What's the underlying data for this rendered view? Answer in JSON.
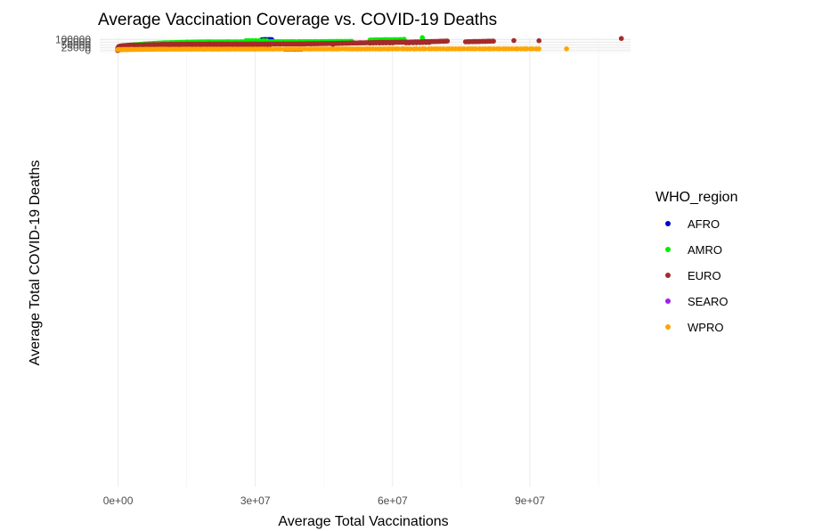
{
  "chart_data": {
    "type": "scatter",
    "title": "Average Vaccination Coverage vs. COVID-19 Deaths",
    "xlabel": "Average Total Vaccinations",
    "ylabel": "Average Total COVID-19 Deaths",
    "xlim": [
      -4000000,
      112000000
    ],
    "ylim": [
      -4000000,
      120000
    ],
    "xticks": [
      0,
      30000000,
      60000000,
      90000000
    ],
    "xtick_labels": [
      "0e+00",
      "3e+07",
      "6e+07",
      "9e+07"
    ],
    "yticks": [
      0,
      25000,
      50000,
      75000,
      100000
    ],
    "ytick_labels": [
      "0",
      "25000",
      "50000",
      "75000",
      "100000"
    ],
    "grid": true,
    "legend": {
      "title": "WHO_region",
      "position": "right"
    },
    "series": [
      {
        "name": "AFRO",
        "color": "#0000cd",
        "segments": [
          {
            "x0": 31500000,
            "x1": 33500000,
            "y0": 99500,
            "y1": 100100,
            "n": 14
          }
        ]
      },
      {
        "name": "AMRO",
        "color": "#00ee00",
        "segments": [
          {
            "x0": 0,
            "x1": 100000,
            "y0": 16000,
            "y1": 16500,
            "n": 2
          },
          {
            "x0": 200000,
            "x1": 1300000,
            "y0": 38000,
            "y1": 45000,
            "n": 12
          },
          {
            "x0": 1300000,
            "x1": 5500000,
            "y0": 45000,
            "y1": 58000,
            "n": 20
          },
          {
            "x0": 5500000,
            "x1": 10000000,
            "y0": 58500,
            "y1": 70000,
            "n": 24
          },
          {
            "x0": 10000000,
            "x1": 15000000,
            "y0": 70000,
            "y1": 75500,
            "n": 22
          },
          {
            "x0": 15000000,
            "x1": 20000000,
            "y0": 75500,
            "y1": 79000,
            "n": 22
          },
          {
            "x0": 20000000,
            "x1": 30000000,
            "y0": 79000,
            "y1": 79800,
            "n": 34
          },
          {
            "x0": 30000000,
            "x1": 45000000,
            "y0": 79800,
            "y1": 81200,
            "n": 44
          },
          {
            "x0": 45000000,
            "x1": 51000000,
            "y0": 81200,
            "y1": 84000,
            "n": 22
          },
          {
            "x0": 28000000,
            "x1": 30000000,
            "y0": 91000,
            "y1": 91300,
            "n": 4
          },
          {
            "x0": 31000000,
            "x1": 32500000,
            "y0": 91500,
            "y1": 91700,
            "n": 3
          },
          {
            "x0": 55000000,
            "x1": 62000000,
            "y0": 96500,
            "y1": 100500,
            "n": 26
          },
          {
            "x0": 62500000,
            "x1": 62500000,
            "y0": 103000,
            "y1": 103000,
            "n": 1
          },
          {
            "x0": 66500000,
            "x1": 66500000,
            "y0": 118000,
            "y1": 118000,
            "n": 1
          },
          {
            "x0": 66800000,
            "x1": 66800000,
            "y0": 88000,
            "y1": 88000,
            "n": 1
          },
          {
            "x0": 800000,
            "x1": 800000,
            "y0": 36000,
            "y1": 36000,
            "n": 1
          }
        ]
      },
      {
        "name": "EURO",
        "color": "#a52a2a",
        "segments": [
          {
            "x0": 0,
            "x1": 200000,
            "y0": 0,
            "y1": 6000,
            "n": 6
          },
          {
            "x0": 0,
            "x1": 700000,
            "y0": 32000,
            "y1": 41000,
            "n": 10
          },
          {
            "x0": 700000,
            "x1": 3000000,
            "y0": 41000,
            "y1": 49000,
            "n": 18
          },
          {
            "x0": 3000000,
            "x1": 10000000,
            "y0": 49000,
            "y1": 56000,
            "n": 26
          },
          {
            "x0": 10000000,
            "x1": 20000000,
            "y0": 56000,
            "y1": 59000,
            "n": 32
          },
          {
            "x0": 20000000,
            "x1": 40000000,
            "y0": 59000,
            "y1": 60500,
            "n": 50
          },
          {
            "x0": 40000000,
            "x1": 48000000,
            "y0": 60500,
            "y1": 65000,
            "n": 26
          },
          {
            "x0": 48000000,
            "x1": 56000000,
            "y0": 65000,
            "y1": 73000,
            "n": 30
          },
          {
            "x0": 56000000,
            "x1": 65000000,
            "y0": 73000,
            "y1": 78000,
            "n": 34
          },
          {
            "x0": 65000000,
            "x1": 72000000,
            "y0": 78000,
            "y1": 86000,
            "n": 30
          },
          {
            "x0": 55000000,
            "x1": 60000000,
            "y0": 68000,
            "y1": 70000,
            "n": 8
          },
          {
            "x0": 63000000,
            "x1": 68000000,
            "y0": 70000,
            "y1": 75000,
            "n": 8
          },
          {
            "x0": 76000000,
            "x1": 82000000,
            "y0": 80000,
            "y1": 86000,
            "n": 20
          },
          {
            "x0": 86500000,
            "x1": 86500000,
            "y0": 91000,
            "y1": 91000,
            "n": 1
          },
          {
            "x0": 92000000,
            "x1": 92000000,
            "y0": 90000,
            "y1": 90000,
            "n": 1
          },
          {
            "x0": 110000000,
            "x1": 110000000,
            "y0": 110000,
            "y1": 110000,
            "n": 1
          },
          {
            "x0": 47000000,
            "x1": 47000000,
            "y0": 55500,
            "y1": 55500,
            "n": 1
          },
          {
            "x0": 0,
            "x1": 1500000,
            "y0": 18000,
            "y1": 21000,
            "n": 8
          },
          {
            "x0": 1500000,
            "x1": 6000000,
            "y0": 21000,
            "y1": 25500,
            "n": 14
          },
          {
            "x0": 6000000,
            "x1": 20000000,
            "y0": 25500,
            "y1": 28000,
            "n": 30
          },
          {
            "x0": 20000000,
            "x1": 27000000,
            "y0": 28000,
            "y1": 35000,
            "n": 20
          },
          {
            "x0": 27000000,
            "x1": 33000000,
            "y0": 35000,
            "y1": 40000,
            "n": 18
          }
        ]
      },
      {
        "name": "SEARO",
        "color": "#a020f0",
        "segments": [
          {
            "x0": 36500000,
            "x1": 40000000,
            "y0": 12000,
            "y1": 12000,
            "n": 14
          }
        ]
      },
      {
        "name": "WPRO",
        "color": "#ffa500",
        "segments": [
          {
            "x0": 0,
            "x1": 300000,
            "y0": 7000,
            "y1": 8000,
            "n": 6
          },
          {
            "x0": 300000,
            "x1": 3000000,
            "y0": 8000,
            "y1": 10000,
            "n": 14
          },
          {
            "x0": 3000000,
            "x1": 10000000,
            "y0": 10000,
            "y1": 12000,
            "n": 20
          },
          {
            "x0": 10000000,
            "x1": 30000000,
            "y0": 12000,
            "y1": 14000,
            "n": 40
          },
          {
            "x0": 30000000,
            "x1": 60000000,
            "y0": 14000,
            "y1": 15000,
            "n": 50
          },
          {
            "x0": 60000000,
            "x1": 92000000,
            "y0": 15000,
            "y1": 15500,
            "n": 50
          },
          {
            "x0": 98000000,
            "x1": 98000000,
            "y0": 15500,
            "y1": 15500,
            "n": 1
          }
        ]
      }
    ]
  }
}
